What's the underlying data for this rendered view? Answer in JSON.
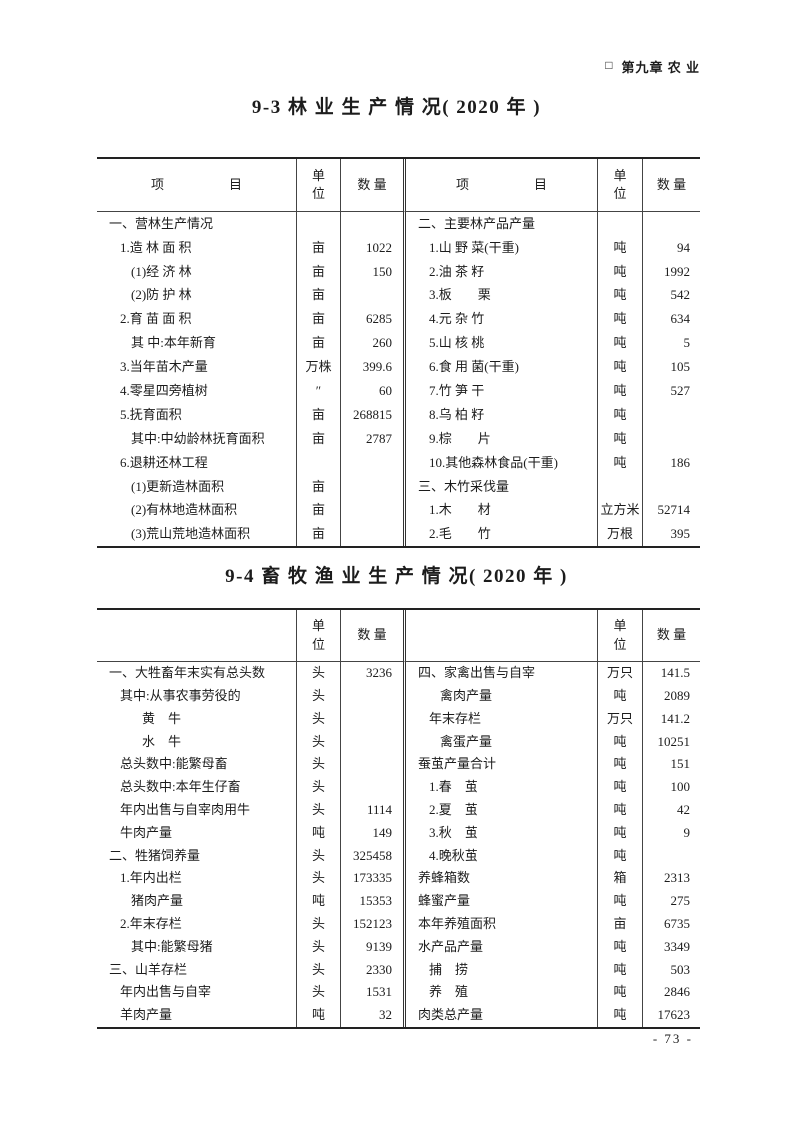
{
  "page": {
    "chapter_marker": "□",
    "chapter_title": "第九章  农 业",
    "page_number": "- 73 -"
  },
  "tables": [
    {
      "id": "9-3",
      "title": "9-3 林 业 生 产 情 况( 2020 年 )",
      "header": {
        "item": "项　　　　　目",
        "unit": "单\n位",
        "qty": "数 量"
      },
      "rows": [
        [
          "一、营林生产情况",
          0,
          "",
          "",
          "二、主要林产品产量",
          0,
          "",
          ""
        ],
        [
          "1.造 林 面 积",
          1,
          "亩",
          "1022",
          "1.山 野 菜(干重)",
          1,
          "吨",
          "94"
        ],
        [
          "(1)经 济 林",
          2,
          "亩",
          "150",
          "2.油 茶 籽",
          1,
          "吨",
          "1992"
        ],
        [
          "(2)防 护 林",
          2,
          "亩",
          "",
          "3.板　　栗",
          1,
          "吨",
          "542"
        ],
        [
          "2.育 苗 面 积",
          1,
          "亩",
          "6285",
          "4.元 杂 竹",
          1,
          "吨",
          "634"
        ],
        [
          "其 中:本年新育",
          2,
          "亩",
          "260",
          "5.山 核 桃",
          1,
          "吨",
          "5"
        ],
        [
          "3.当年苗木产量",
          1,
          "万株",
          "399.6",
          "6.食 用 菌(干重)",
          1,
          "吨",
          "105"
        ],
        [
          "4.零星四旁植树",
          1,
          "″",
          "60",
          "7.竹 笋 干",
          1,
          "吨",
          "527"
        ],
        [
          "5.抚育面积",
          1,
          "亩",
          "268815",
          "8.乌 柏 籽",
          1,
          "吨",
          ""
        ],
        [
          "其中:中幼龄林抚育面积",
          2,
          "亩",
          "2787",
          "9.棕　　片",
          1,
          "吨",
          ""
        ],
        [
          "6.退耕还林工程",
          1,
          "",
          "",
          "10.其他森林食品(干重)",
          1,
          "吨",
          "186"
        ],
        [
          "(1)更新造林面积",
          2,
          "亩",
          "",
          "三、木竹采伐量",
          0,
          "",
          ""
        ],
        [
          "(2)有林地造林面积",
          2,
          "亩",
          "",
          "1.木　　材",
          1,
          "立方米",
          "52714"
        ],
        [
          "(3)荒山荒地造林面积",
          2,
          "亩",
          "",
          "2.毛　　竹",
          1,
          "万根",
          "395"
        ]
      ]
    },
    {
      "id": "9-4",
      "title": "9-4 畜 牧 渔 业 生 产 情 况( 2020 年 )",
      "header": {
        "item": "",
        "unit": "单\n位",
        "qty": "数 量"
      },
      "rows": [
        [
          "一、大牲畜年末实有总头数",
          0,
          "头",
          "3236",
          "四、家禽出售与自宰",
          0,
          "万只",
          "141.5"
        ],
        [
          "其中:从事农事劳役的",
          1,
          "头",
          "",
          "禽肉产量",
          2,
          "吨",
          "2089"
        ],
        [
          "黄　牛",
          3,
          "头",
          "",
          "年末存栏",
          1,
          "万只",
          "141.2"
        ],
        [
          "水　牛",
          3,
          "头",
          "",
          "禽蛋产量",
          2,
          "吨",
          "10251"
        ],
        [
          "总头数中:能繁母畜",
          1,
          "头",
          "",
          "蚕茧产量合计",
          0,
          "吨",
          "151"
        ],
        [
          "总头数中:本年生仔畜",
          1,
          "头",
          "",
          "1.春　茧",
          1,
          "吨",
          "100"
        ],
        [
          "年内出售与自宰肉用牛",
          1,
          "头",
          "1114",
          "2.夏　茧",
          1,
          "吨",
          "42"
        ],
        [
          "牛肉产量",
          1,
          "吨",
          "149",
          "3.秋　茧",
          1,
          "吨",
          "9"
        ],
        [
          "二、牲猪饲养量",
          0,
          "头",
          "325458",
          "4.晚秋茧",
          1,
          "吨",
          ""
        ],
        [
          "1.年内出栏",
          1,
          "头",
          "173335",
          "养蜂箱数",
          0,
          "箱",
          "2313"
        ],
        [
          "猪肉产量",
          2,
          "吨",
          "15353",
          "蜂蜜产量",
          0,
          "吨",
          "275"
        ],
        [
          "2.年末存栏",
          1,
          "头",
          "152123",
          "本年养殖面积",
          0,
          "亩",
          "6735"
        ],
        [
          "其中:能繁母猪",
          2,
          "头",
          "9139",
          "水产品产量",
          0,
          "吨",
          "3349"
        ],
        [
          "三、山羊存栏",
          0,
          "头",
          "2330",
          "捕　捞",
          1,
          "吨",
          "503"
        ],
        [
          "年内出售与自宰",
          1,
          "头",
          "1531",
          "养　殖",
          1,
          "吨",
          "2846"
        ],
        [
          "羊肉产量",
          1,
          "吨",
          "32",
          "肉类总产量",
          0,
          "吨",
          "17623"
        ]
      ]
    }
  ]
}
